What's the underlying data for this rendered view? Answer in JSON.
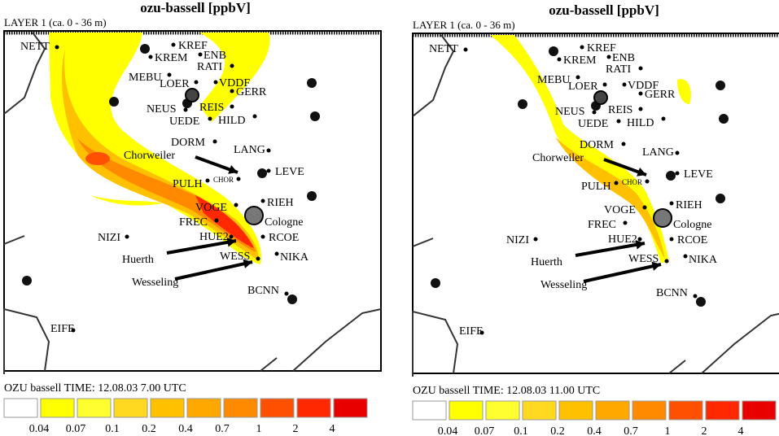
{
  "panels": [
    {
      "title": "ozu-bassell [ppbV]",
      "layer": "LAYER 1 (ca. 0 - 36 m)",
      "legend_title": "OZU bassell    TIME: 12.08.03    7.00 UTC",
      "plume": "wide"
    },
    {
      "title": "ozu-bassell [ppbV]",
      "layer": "LAYER 1 (ca. 0 - 36 m)",
      "legend_title": "OZU bassell    TIME: 12.08.03    11.00 UTC",
      "plume": "narrow"
    }
  ],
  "stations": [
    "NETT",
    "KREF",
    "KREM",
    "ENB",
    "RATI",
    "MEBU",
    "LOER",
    "VDDF",
    "GERR",
    "NEUS",
    "REIS",
    "UEDE",
    "HILD",
    "DORM",
    "LANG",
    "LEVE",
    "PULH",
    "CHOR",
    "VOGE",
    "RIEH",
    "FREC",
    "NIZI",
    "HUE2",
    "RCOE",
    "WESS",
    "NIKA",
    "BCNN",
    "EIFE"
  ],
  "annotations": [
    "Chorweiler",
    "Huerth",
    "Wesseling",
    "Cologne"
  ],
  "legend": {
    "labels": [
      "0.04",
      "0.07",
      "0.1",
      "0.2",
      "0.4",
      "0.7",
      "1",
      "2",
      "4"
    ],
    "colors": [
      "#ffffff",
      "#ffff00",
      "#ffff30",
      "#ffd820",
      "#ffc000",
      "#ffa800",
      "#ff8a00",
      "#ff5000",
      "#ff2800",
      "#e80000"
    ]
  }
}
